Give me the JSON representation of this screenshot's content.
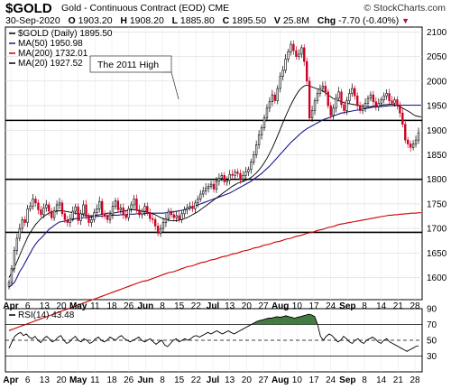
{
  "header": {
    "symbol": "$GOLD",
    "description": "Gold - Continuous Contract (EOD)",
    "exchange": "CME",
    "brand": "© StockCharts.com",
    "date": "30-Sep-2020",
    "open_label": "O",
    "open": "1903.20",
    "high_label": "H",
    "high": "1908.20",
    "low_label": "L",
    "low": "1885.80",
    "close_label": "C",
    "close": "1895.50",
    "volume_label": "V",
    "volume": "25.8M",
    "change_label": "Chg",
    "change": "-7.70 (-0.40%)"
  },
  "chart_data": [
    {
      "type": "candlestick",
      "legend_placement": "top-left",
      "legend": [
        {
          "text": "$GOLD (Daily) 1895.50",
          "color": "#000000"
        },
        {
          "text": "MA(50) 1950.98",
          "color": "#1a1a8c"
        },
        {
          "text": "MA(200) 1732.01",
          "color": "#cc0000"
        },
        {
          "text": "MA(20) 1927.52",
          "color": "#000000"
        }
      ],
      "ylim": [
        1555,
        2110
      ],
      "y_ticks": [
        1600,
        1650,
        1700,
        1750,
        1800,
        1850,
        1900,
        1950,
        2000,
        2050,
        2100
      ],
      "x_labels": [
        "Apr",
        "6",
        "13",
        "20",
        "May",
        "11",
        "18",
        "26",
        "Jun",
        "8",
        "15",
        "22",
        "Jul",
        "13",
        "20",
        "27",
        "Aug",
        "10",
        "17",
        "24",
        "Sep",
        "8",
        "14",
        "21",
        "28"
      ],
      "horizontal_lines": [
        1920,
        1800,
        1692
      ],
      "annotation": "The 2011 High",
      "colors": {
        "up": "#000000",
        "down": "#cc0022",
        "ma50": "#1a1a8c",
        "ma200": "#cc0000",
        "ma20": "#000000"
      },
      "prices": [
        1590,
        1618,
        1655,
        1680,
        1700,
        1718,
        1712,
        1740,
        1745,
        1760,
        1752,
        1738,
        1728,
        1742,
        1748,
        1735,
        1722,
        1736,
        1748,
        1752,
        1730,
        1718,
        1712,
        1720,
        1735,
        1744,
        1716,
        1730,
        1748,
        1725,
        1712,
        1718,
        1732,
        1740,
        1755,
        1730,
        1725,
        1718,
        1728,
        1745,
        1756,
        1738,
        1742,
        1728,
        1722,
        1740,
        1748,
        1760,
        1738,
        1728,
        1735,
        1745,
        1732,
        1720,
        1718,
        1705,
        1690,
        1700,
        1712,
        1720,
        1735,
        1728,
        1722,
        1726,
        1718,
        1730,
        1738,
        1742,
        1745,
        1740,
        1752,
        1760,
        1770,
        1776,
        1782,
        1786,
        1790,
        1780,
        1796,
        1802,
        1808,
        1795,
        1798,
        1810,
        1808,
        1815,
        1812,
        1800,
        1808,
        1815,
        1820,
        1835,
        1850,
        1870,
        1890,
        1905,
        1925,
        1945,
        1958,
        1972,
        1960,
        1985,
        2010,
        2022,
        2045,
        2060,
        2075,
        2062,
        2050,
        2055,
        2068,
        2040,
        2000,
        1925,
        1940,
        1960,
        1975,
        1985,
        1990,
        1978,
        1950,
        1930,
        1945,
        1965,
        1978,
        1952,
        1940,
        1960,
        1975,
        1985,
        1970,
        1950,
        1940,
        1945,
        1955,
        1965,
        1972,
        1958,
        1948,
        1955,
        1962,
        1970,
        1975,
        1960,
        1955,
        1962,
        1950,
        1935,
        1912,
        1880,
        1872,
        1865,
        1872,
        1880,
        1895
      ],
      "ma50": [
        1580,
        1585,
        1590,
        1600,
        1612,
        1620,
        1630,
        1640,
        1650,
        1660,
        1668,
        1675,
        1680,
        1686,
        1692,
        1698,
        1702,
        1706,
        1710,
        1713,
        1714,
        1715,
        1716,
        1717,
        1718,
        1720,
        1720,
        1721,
        1722,
        1722,
        1723,
        1723,
        1724,
        1724,
        1725,
        1725,
        1726,
        1726,
        1726,
        1727,
        1727,
        1727,
        1728,
        1728,
        1728,
        1729,
        1729,
        1729,
        1730,
        1730,
        1730,
        1730,
        1731,
        1731,
        1731,
        1731,
        1731,
        1731,
        1731,
        1732,
        1732,
        1733,
        1734,
        1735,
        1736,
        1737,
        1738,
        1740,
        1742,
        1744,
        1746,
        1748,
        1750,
        1752,
        1754,
        1756,
        1758,
        1760,
        1762,
        1764,
        1766,
        1768,
        1770,
        1772,
        1775,
        1778,
        1781,
        1784,
        1787,
        1790,
        1793,
        1796,
        1800,
        1804,
        1808,
        1812,
        1817,
        1822,
        1827,
        1833,
        1839,
        1845,
        1851,
        1857,
        1863,
        1869,
        1875,
        1880,
        1885,
        1890,
        1895,
        1899,
        1903,
        1906,
        1909,
        1912,
        1915,
        1918,
        1921,
        1923,
        1925,
        1927,
        1929,
        1931,
        1933,
        1935,
        1936,
        1937,
        1938,
        1939,
        1940,
        1941,
        1942,
        1943,
        1944,
        1945,
        1946,
        1947,
        1947,
        1948,
        1948,
        1949,
        1949,
        1950,
        1950,
        1950,
        1951,
        1951,
        1951,
        1951,
        1951,
        1951,
        1951,
        1951,
        1951,
        1951
      ],
      "ma200": [
        1492,
        1494,
        1496,
        1498,
        1500,
        1502,
        1504,
        1506,
        1508,
        1510,
        1512,
        1514,
        1516,
        1518,
        1520,
        1522,
        1524,
        1526,
        1528,
        1530,
        1532,
        1534,
        1536,
        1538,
        1540,
        1542,
        1544,
        1546,
        1548,
        1550,
        1552,
        1554,
        1556,
        1558,
        1560,
        1562,
        1564,
        1566,
        1568,
        1570,
        1572,
        1574,
        1576,
        1578,
        1580,
        1582,
        1584,
        1586,
        1588,
        1590,
        1592,
        1593,
        1594,
        1596,
        1598,
        1600,
        1602,
        1604,
        1606,
        1608,
        1610,
        1611,
        1612,
        1614,
        1616,
        1618,
        1620,
        1622,
        1623,
        1624,
        1626,
        1628,
        1630,
        1631,
        1632,
        1634,
        1636,
        1637,
        1638,
        1640,
        1642,
        1643,
        1644,
        1646,
        1648,
        1649,
        1650,
        1652,
        1654,
        1655,
        1656,
        1658,
        1660,
        1661,
        1662,
        1664,
        1666,
        1667,
        1668,
        1670,
        1672,
        1673,
        1674,
        1676,
        1678,
        1679,
        1680,
        1682,
        1684,
        1685,
        1686,
        1688,
        1690,
        1691,
        1692,
        1694,
        1696,
        1697,
        1698,
        1700,
        1702,
        1703,
        1704,
        1706,
        1708,
        1709,
        1710,
        1711,
        1712,
        1713,
        1714,
        1715,
        1716,
        1717,
        1718,
        1719,
        1720,
        1721,
        1722,
        1723,
        1724,
        1725,
        1726,
        1727,
        1727,
        1728,
        1728,
        1729,
        1729,
        1730,
        1730,
        1731,
        1731,
        1731,
        1732,
        1732
      ],
      "ma20": [
        1600,
        1610,
        1620,
        1632,
        1645,
        1658,
        1670,
        1682,
        1692,
        1700,
        1708,
        1714,
        1720,
        1724,
        1728,
        1731,
        1733,
        1734,
        1735,
        1736,
        1736,
        1735,
        1734,
        1733,
        1732,
        1731,
        1730,
        1729,
        1728,
        1727,
        1726,
        1726,
        1726,
        1727,
        1728,
        1729,
        1730,
        1731,
        1731,
        1731,
        1732,
        1733,
        1734,
        1735,
        1736,
        1737,
        1738,
        1738,
        1737,
        1736,
        1735,
        1734,
        1733,
        1732,
        1730,
        1728,
        1725,
        1722,
        1720,
        1718,
        1717,
        1716,
        1716,
        1716,
        1717,
        1718,
        1720,
        1722,
        1725,
        1728,
        1731,
        1734,
        1738,
        1742,
        1746,
        1750,
        1754,
        1758,
        1762,
        1766,
        1770,
        1774,
        1778,
        1782,
        1786,
        1789,
        1792,
        1794,
        1796,
        1798,
        1800,
        1804,
        1808,
        1813,
        1819,
        1826,
        1834,
        1843,
        1853,
        1864,
        1876,
        1889,
        1902,
        1915,
        1928,
        1940,
        1952,
        1962,
        1972,
        1980,
        1986,
        1990,
        1992,
        1990,
        1988,
        1986,
        1984,
        1982,
        1980,
        1976,
        1972,
        1968,
        1964,
        1962,
        1960,
        1958,
        1956,
        1955,
        1954,
        1953,
        1952,
        1951,
        1950,
        1949,
        1948,
        1948,
        1948,
        1949,
        1950,
        1950,
        1951,
        1952,
        1952,
        1953,
        1953,
        1952,
        1950,
        1948,
        1945,
        1942,
        1939,
        1936,
        1932,
        1929,
        1928,
        1927
      ]
    },
    {
      "type": "line",
      "legend": [
        {
          "text": "RSI(14) 43.48",
          "color": "#000000"
        }
      ],
      "ylim": [
        10,
        90
      ],
      "y_ticks": [
        10,
        30,
        50,
        70,
        90
      ],
      "reference_lines": [
        70,
        50,
        30
      ],
      "overbought_fill_color": "#2d6b2d",
      "x_labels": [
        "Apr",
        "6",
        "13",
        "20",
        "May",
        "11",
        "18",
        "26",
        "Jun",
        "8",
        "15",
        "22",
        "Jul",
        "13",
        "20",
        "27",
        "Aug",
        "10",
        "17",
        "24",
        "Sep",
        "8",
        "14",
        "21",
        "28"
      ],
      "values": [
        40,
        48,
        55,
        58,
        60,
        56,
        58,
        54,
        52,
        55,
        50,
        47,
        52,
        55,
        52,
        48,
        50,
        54,
        56,
        50,
        46,
        48,
        52,
        55,
        50,
        48,
        52,
        50,
        46,
        48,
        52,
        54,
        50,
        48,
        50,
        54,
        52,
        50,
        54,
        56,
        52,
        50,
        48,
        50,
        52,
        54,
        50,
        48,
        50,
        52,
        48,
        45,
        48,
        50,
        44,
        42,
        46,
        50,
        52,
        48,
        50,
        52,
        50,
        52,
        55,
        56,
        54,
        56,
        58,
        60,
        58,
        60,
        62,
        60,
        58,
        60,
        62,
        60,
        58,
        60,
        62,
        64,
        66,
        68,
        70,
        72,
        74,
        75,
        76,
        77,
        78,
        78,
        79,
        80,
        79,
        80,
        81,
        80,
        79,
        78,
        79,
        80,
        81,
        82,
        83,
        82,
        80,
        70,
        55,
        50,
        55,
        58,
        56,
        52,
        48,
        50,
        55,
        52,
        48,
        46,
        50,
        52,
        48,
        46,
        50,
        52,
        54,
        52,
        48,
        46,
        50,
        52,
        48,
        46,
        44,
        42,
        40,
        38,
        36,
        38,
        40,
        42,
        43
      ]
    }
  ]
}
